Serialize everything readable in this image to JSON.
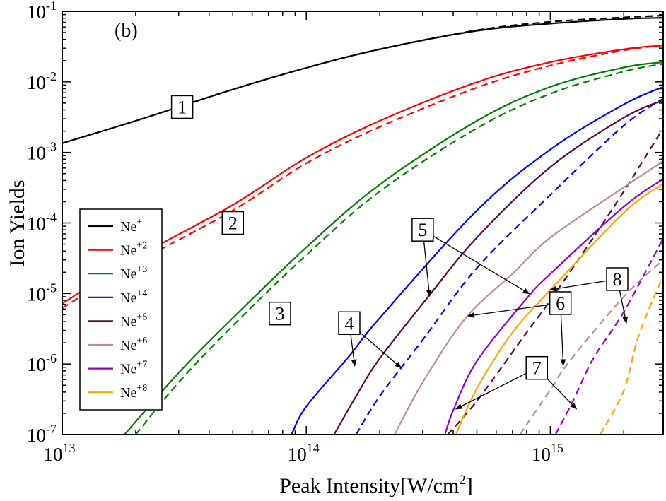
{
  "chart_data": {
    "type": "line",
    "title": "(b)",
    "xlabel": "Peak Intensity[W/cm",
    "xlabel_sup": "2",
    "xlabel_end": "]",
    "ylabel": "Ion Yields",
    "xscale": "log",
    "yscale": "log",
    "xlim": [
      10000000000000.0,
      2900000000000000.0
    ],
    "ylim": [
      1e-07,
      0.1
    ],
    "x_ticks": [
      {
        "value": 10000000000000.0,
        "base": "10",
        "exp": "13"
      },
      {
        "value": 100000000000000.0,
        "base": "10",
        "exp": "14"
      },
      {
        "value": 1000000000000000.0,
        "base": "10",
        "exp": "15"
      }
    ],
    "y_ticks": [
      {
        "value": 0.1,
        "base": "10",
        "exp": "-1"
      },
      {
        "value": 0.01,
        "base": "10",
        "exp": "-2"
      },
      {
        "value": 0.001,
        "base": "10",
        "exp": "-3"
      },
      {
        "value": 0.0001,
        "base": "10",
        "exp": "-4"
      },
      {
        "value": 1e-05,
        "base": "10",
        "exp": "-5"
      },
      {
        "value": 1e-06,
        "base": "10",
        "exp": "-6"
      },
      {
        "value": 1e-07,
        "base": "10",
        "exp": "-7"
      }
    ],
    "legend_position": "left-middle",
    "series": [
      {
        "name": "Ne+",
        "base": "Ne",
        "sup": "+",
        "color": "#000000",
        "solid": [
          [
            10000000000000.0,
            0.00135
          ],
          [
            20000000000000.0,
            0.0028
          ],
          [
            50000000000000.0,
            0.0078
          ],
          [
            100000000000000.0,
            0.0158
          ],
          [
            200000000000000.0,
            0.029
          ],
          [
            500000000000000.0,
            0.053
          ],
          [
            1000000000000000.0,
            0.067
          ],
          [
            2000000000000000.0,
            0.078
          ],
          [
            2900000000000000.0,
            0.081
          ]
        ],
        "dashed": [
          [
            10000000000000.0,
            0.00135
          ],
          [
            20000000000000.0,
            0.0028
          ],
          [
            50000000000000.0,
            0.0078
          ],
          [
            100000000000000.0,
            0.0158
          ],
          [
            200000000000000.0,
            0.029
          ],
          [
            500000000000000.0,
            0.054
          ],
          [
            1000000000000000.0,
            0.071
          ],
          [
            2000000000000000.0,
            0.082
          ],
          [
            2900000000000000.0,
            0.087
          ]
        ]
      },
      {
        "name": "Ne+2",
        "base": "Ne",
        "sup": "+2",
        "color": "#ff0000",
        "solid": [
          [
            10000000000000.0,
            7.2e-06
          ],
          [
            20000000000000.0,
            3.2e-05
          ],
          [
            50000000000000.0,
            0.00018
          ],
          [
            100000000000000.0,
            0.00084
          ],
          [
            200000000000000.0,
            0.0028
          ],
          [
            500000000000000.0,
            0.0099
          ],
          [
            1000000000000000.0,
            0.019
          ],
          [
            2000000000000000.0,
            0.029
          ],
          [
            2900000000000000.0,
            0.033
          ]
        ],
        "dashed": [
          [
            10000000000000.0,
            6.2e-06
          ],
          [
            20000000000000.0,
            2.7e-05
          ],
          [
            50000000000000.0,
            0.00015
          ],
          [
            100000000000000.0,
            0.0007
          ],
          [
            200000000000000.0,
            0.0023
          ],
          [
            500000000000000.0,
            0.0083
          ],
          [
            1000000000000000.0,
            0.017
          ],
          [
            2000000000000000.0,
            0.028
          ],
          [
            2900000000000000.0,
            0.033
          ]
        ]
      },
      {
        "name": "Ne+3",
        "base": "Ne",
        "sup": "+3",
        "color": "#008000",
        "solid": [
          [
            18000000000000.0,
            1e-07
          ],
          [
            30000000000000.0,
            7.5e-07
          ],
          [
            50000000000000.0,
            4.5e-06
          ],
          [
            100000000000000.0,
            4.5e-05
          ],
          [
            200000000000000.0,
            0.00035
          ],
          [
            500000000000000.0,
            0.0028
          ],
          [
            1000000000000000.0,
            0.0085
          ],
          [
            2000000000000000.0,
            0.016
          ],
          [
            2900000000000000.0,
            0.019
          ]
        ],
        "dashed": [
          [
            20000000000000.0,
            1e-07
          ],
          [
            30000000000000.0,
            5.5e-07
          ],
          [
            50000000000000.0,
            3.5e-06
          ],
          [
            100000000000000.0,
            3.5e-05
          ],
          [
            200000000000000.0,
            0.00028
          ],
          [
            500000000000000.0,
            0.0022
          ],
          [
            1000000000000000.0,
            0.0068
          ],
          [
            2000000000000000.0,
            0.014
          ],
          [
            2900000000000000.0,
            0.018
          ]
        ]
      },
      {
        "name": "Ne+4",
        "base": "Ne",
        "sup": "+4",
        "color": "#0000ff",
        "solid": [
          [
            87000000000000.0,
            1e-07
          ],
          [
            100000000000000.0,
            2.5e-07
          ],
          [
            150000000000000.0,
            1.3e-06
          ],
          [
            200000000000000.0,
            4.5e-06
          ],
          [
            500000000000000.0,
            0.00015
          ],
          [
            1000000000000000.0,
            0.0011
          ],
          [
            2000000000000000.0,
            0.0048
          ],
          [
            2900000000000000.0,
            0.0085
          ]
        ],
        "dashed": [
          [
            160000000000000.0,
            1e-07
          ],
          [
            200000000000000.0,
            3.5e-07
          ],
          [
            300000000000000.0,
            2.2e-06
          ],
          [
            500000000000000.0,
            2.3e-05
          ],
          [
            1000000000000000.0,
            0.00025
          ],
          [
            2000000000000000.0,
            0.0024
          ],
          [
            2900000000000000.0,
            0.0058
          ]
        ]
      },
      {
        "name": "Ne+5",
        "base": "Ne",
        "sup": "+5",
        "color": "#5a0a3c",
        "solid": [
          [
            130000000000000.0,
            1e-07
          ],
          [
            160000000000000.0,
            3.5e-07
          ],
          [
            200000000000000.0,
            1.2e-06
          ],
          [
            320000000000000.0,
            9.5e-06
          ],
          [
            500000000000000.0,
            6.2e-05
          ],
          [
            1000000000000000.0,
            0.00062
          ],
          [
            2000000000000000.0,
            0.0031
          ],
          [
            2900000000000000.0,
            0.0055
          ]
        ],
        "dashed": [
          [
            380000000000000.0,
            1e-07
          ],
          [
            500000000000000.0,
            3e-07
          ],
          [
            800000000000000.0,
            2.8e-06
          ],
          [
            1000000000000000.0,
            8e-06
          ],
          [
            1500000000000000.0,
            6.2e-05
          ],
          [
            2000000000000000.0,
            0.00028
          ],
          [
            2900000000000000.0,
            0.0022
          ]
        ]
      },
      {
        "name": "Ne+6",
        "base": "Ne",
        "sup": "+6",
        "color": "#bc8f8f",
        "solid": [
          [
            230000000000000.0,
            1e-07
          ],
          [
            300000000000000.0,
            5.5e-07
          ],
          [
            450000000000000.0,
            4.5e-06
          ],
          [
            700000000000000.0,
            1.9e-05
          ],
          [
            1000000000000000.0,
            6.2e-05
          ],
          [
            2000000000000000.0,
            0.00032
          ],
          [
            2900000000000000.0,
            0.00075
          ]
        ],
        "dashed": [
          [
            750000000000000.0,
            1e-07
          ],
          [
            1000000000000000.0,
            4.3e-07
          ],
          [
            1200000000000000.0,
            1.1e-06
          ],
          [
            2000000000000000.0,
            9e-06
          ],
          [
            2900000000000000.0,
            3e-05
          ]
        ]
      },
      {
        "name": "Ne+7",
        "base": "Ne",
        "sup": "+7",
        "color": "#9400d3",
        "solid": [
          [
            370000000000000.0,
            1e-07
          ],
          [
            400000000000000.0,
            2.2e-07
          ],
          [
            500000000000000.0,
            1.1e-06
          ],
          [
            800000000000000.0,
            8.5e-06
          ],
          [
            1000000000000000.0,
            1.9e-05
          ],
          [
            2000000000000000.0,
            0.00017
          ],
          [
            2900000000000000.0,
            0.00042
          ]
        ],
        "dashed": [
          [
            1050000000000000.0,
            1e-07
          ],
          [
            1250000000000000.0,
            3.2e-07
          ],
          [
            1500000000000000.0,
            1.2e-06
          ],
          [
            2000000000000000.0,
            5.5e-06
          ],
          [
            2900000000000000.0,
            6e-05
          ]
        ]
      },
      {
        "name": "Ne+8",
        "base": "Ne",
        "sup": "+8",
        "color": "#ffa500",
        "solid": [
          [
            410000000000000.0,
            1e-07
          ],
          [
            500000000000000.0,
            4.5e-07
          ],
          [
            700000000000000.0,
            2.8e-06
          ],
          [
            1000000000000000.0,
            1.12e-05
          ],
          [
            2000000000000000.0,
            0.00014
          ],
          [
            2900000000000000.0,
            0.00036
          ]
        ],
        "dashed": [
          [
            1600000000000000.0,
            1e-07
          ],
          [
            2000000000000000.0,
            4.2e-07
          ],
          [
            2300000000000000.0,
            2.5e-06
          ],
          [
            2900000000000000.0,
            1.8e-05
          ]
        ]
      }
    ],
    "annotations": [
      {
        "label": "1",
        "x": 31000000000000.0,
        "y": 0.0044,
        "arrows": []
      },
      {
        "label": "2",
        "x": 50000000000000.0,
        "y": 0.0001,
        "arrows": []
      },
      {
        "label": "3",
        "x": 78000000000000.0,
        "y": 5.2e-06,
        "arrows": []
      },
      {
        "label": "4",
        "x": 150000000000000.0,
        "y": 3.8e-06,
        "arrows": [
          [
            158000000000000.0,
            9.4e-07
          ],
          [
            245000000000000.0,
            8.8e-07
          ]
        ]
      },
      {
        "label": "5",
        "x": 300000000000000.0,
        "y": 8e-05,
        "arrows": [
          [
            320000000000000.0,
            9.2e-06
          ],
          [
            820000000000000.0,
            9.9e-06
          ]
        ]
      },
      {
        "label": "6",
        "x": 1100000000000000.0,
        "y": 7.3e-06,
        "arrows": [
          [
            460000000000000.0,
            4.8e-06
          ],
          [
            1130000000000000.0,
            9.5e-07
          ]
        ]
      },
      {
        "label": "7",
        "x": 880000000000000.0,
        "y": 8.8e-07,
        "arrows": [
          [
            410000000000000.0,
            2.3e-07
          ],
          [
            1280000000000000.0,
            2.3e-07
          ]
        ]
      },
      {
        "label": "8",
        "x": 1880000000000000.0,
        "y": 1.6e-05,
        "arrows": [
          [
            1000000000000000.0,
            1.13e-05
          ],
          [
            2050000000000000.0,
            3.8e-06
          ]
        ]
      }
    ]
  }
}
